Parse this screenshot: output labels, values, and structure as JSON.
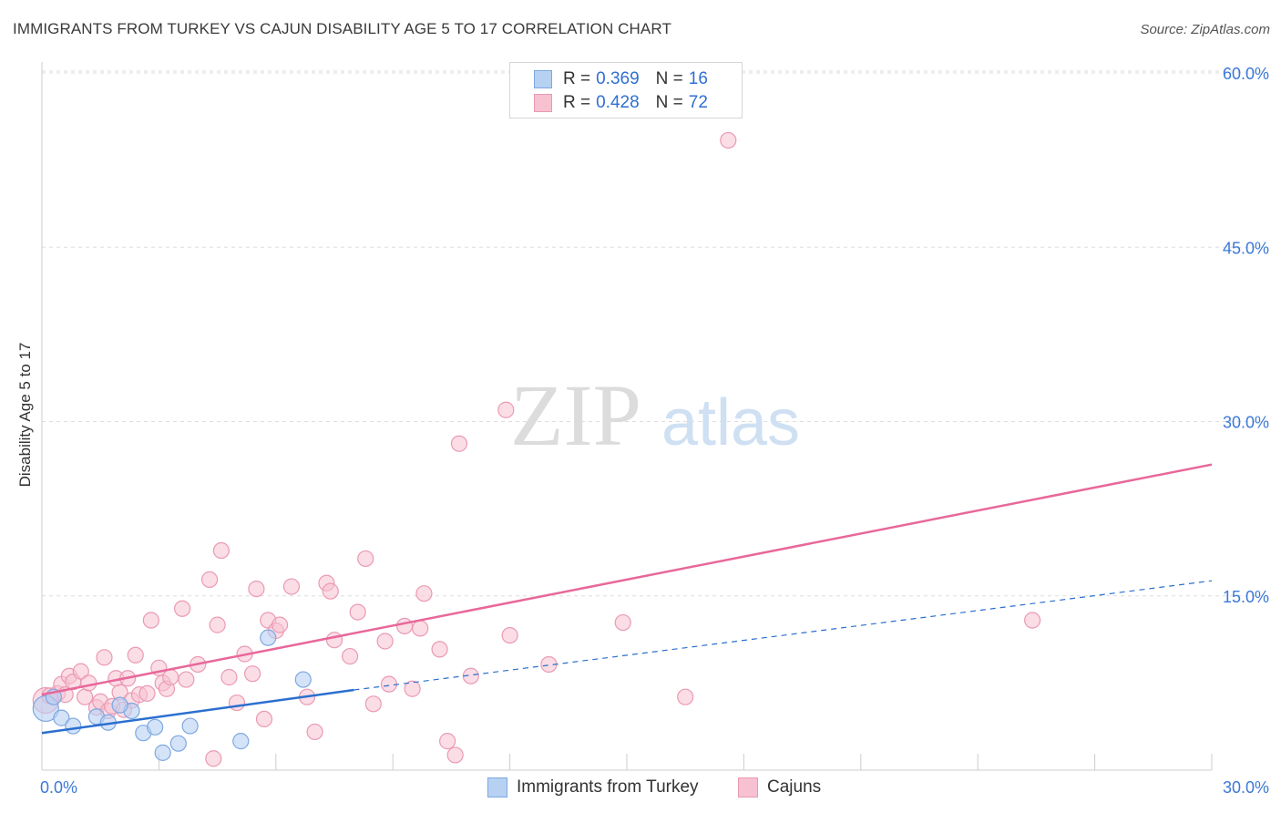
{
  "title": "IMMIGRANTS FROM TURKEY VS CAJUN DISABILITY AGE 5 TO 17 CORRELATION CHART",
  "source": "Source: ZipAtlas.com",
  "watermark": {
    "zip": "ZIP",
    "atlas": "atlas"
  },
  "legend": {
    "series1": {
      "r_label": "R =",
      "r_value": "0.369",
      "n_label": "N =",
      "n_value": "16"
    },
    "series2": {
      "r_label": "R =",
      "r_value": "0.428",
      "n_label": "N =",
      "n_value": "72"
    }
  },
  "colors": {
    "blue_fill": "#b7d1f3",
    "blue_stroke": "#7ea8e0",
    "blue_line": "#2b6fcf",
    "pink_fill": "#f7c1d1",
    "pink_stroke": "#ea9ab3",
    "pink_line": "#e8679a",
    "tick_text": "#3b78d8",
    "grid": "#dddddd"
  },
  "chart_data": {
    "type": "scatter",
    "title": "IMMIGRANTS FROM TURKEY VS CAJUN DISABILITY AGE 5 TO 17 CORRELATION CHART",
    "xlabel": "",
    "ylabel": "Disability Age 5 to 17",
    "xlim": [
      0,
      30
    ],
    "ylim": [
      0,
      60
    ],
    "x_tick_labels": [
      "0.0%",
      "30.0%"
    ],
    "y_ticks": [
      15,
      30,
      45,
      60
    ],
    "y_tick_labels": [
      "15.0%",
      "30.0%",
      "45.0%",
      "60.0%"
    ],
    "bottom_legend": [
      "Immigrants from Turkey",
      "Cajuns"
    ],
    "series": [
      {
        "name": "Immigrants from Turkey",
        "r": 0.369,
        "n": 16,
        "trend": {
          "x0": 0,
          "y0": 3.2,
          "x1": 8,
          "y1": 6.9,
          "dash_to_x": 30,
          "dash_to_y": 16.3
        },
        "points": [
          {
            "x": 0.1,
            "y": 5.3,
            "big": true
          },
          {
            "x": 0.5,
            "y": 4.5
          },
          {
            "x": 0.8,
            "y": 3.8
          },
          {
            "x": 1.4,
            "y": 4.6
          },
          {
            "x": 1.7,
            "y": 4.1
          },
          {
            "x": 2.3,
            "y": 5.1
          },
          {
            "x": 2.6,
            "y": 3.2
          },
          {
            "x": 2.9,
            "y": 3.7
          },
          {
            "x": 3.1,
            "y": 1.5
          },
          {
            "x": 3.5,
            "y": 2.3
          },
          {
            "x": 3.8,
            "y": 3.8
          },
          {
            "x": 5.1,
            "y": 2.5
          },
          {
            "x": 5.8,
            "y": 11.4
          },
          {
            "x": 6.7,
            "y": 7.8
          },
          {
            "x": 0.3,
            "y": 6.3
          },
          {
            "x": 2.0,
            "y": 5.6
          }
        ]
      },
      {
        "name": "Cajuns",
        "r": 0.428,
        "n": 72,
        "trend": {
          "x0": 0,
          "y0": 6.5,
          "x1": 30,
          "y1": 26.3
        },
        "points": [
          {
            "x": 0.1,
            "y": 6.0,
            "big": true
          },
          {
            "x": 0.2,
            "y": 6.4
          },
          {
            "x": 0.4,
            "y": 6.6
          },
          {
            "x": 0.5,
            "y": 7.4
          },
          {
            "x": 0.6,
            "y": 6.5
          },
          {
            "x": 0.7,
            "y": 8.1
          },
          {
            "x": 0.8,
            "y": 7.6
          },
          {
            "x": 1.0,
            "y": 8.5
          },
          {
            "x": 1.1,
            "y": 6.3
          },
          {
            "x": 1.2,
            "y": 7.5
          },
          {
            "x": 1.4,
            "y": 5.4
          },
          {
            "x": 1.5,
            "y": 5.9
          },
          {
            "x": 1.6,
            "y": 9.7
          },
          {
            "x": 1.7,
            "y": 5.1
          },
          {
            "x": 1.8,
            "y": 5.5
          },
          {
            "x": 1.9,
            "y": 7.9
          },
          {
            "x": 2.0,
            "y": 6.7
          },
          {
            "x": 2.2,
            "y": 7.9
          },
          {
            "x": 2.3,
            "y": 6.0
          },
          {
            "x": 2.4,
            "y": 9.9
          },
          {
            "x": 2.5,
            "y": 6.5
          },
          {
            "x": 2.7,
            "y": 6.6
          },
          {
            "x": 2.8,
            "y": 12.9
          },
          {
            "x": 3.0,
            "y": 8.8
          },
          {
            "x": 3.1,
            "y": 7.5
          },
          {
            "x": 3.2,
            "y": 7.0
          },
          {
            "x": 3.3,
            "y": 8.0
          },
          {
            "x": 3.6,
            "y": 13.9
          },
          {
            "x": 3.7,
            "y": 7.8
          },
          {
            "x": 4.0,
            "y": 9.1
          },
          {
            "x": 4.3,
            "y": 16.4
          },
          {
            "x": 4.4,
            "y": 1.0
          },
          {
            "x": 4.5,
            "y": 12.5
          },
          {
            "x": 4.6,
            "y": 18.9
          },
          {
            "x": 4.8,
            "y": 8.0
          },
          {
            "x": 5.0,
            "y": 5.8
          },
          {
            "x": 5.2,
            "y": 10.0
          },
          {
            "x": 5.4,
            "y": 8.3
          },
          {
            "x": 5.5,
            "y": 15.6
          },
          {
            "x": 5.7,
            "y": 4.4
          },
          {
            "x": 5.8,
            "y": 12.9
          },
          {
            "x": 6.0,
            "y": 12.0
          },
          {
            "x": 6.1,
            "y": 12.5
          },
          {
            "x": 6.4,
            "y": 15.8
          },
          {
            "x": 6.8,
            "y": 6.3
          },
          {
            "x": 7.0,
            "y": 3.3
          },
          {
            "x": 7.3,
            "y": 16.1
          },
          {
            "x": 7.4,
            "y": 15.4
          },
          {
            "x": 7.5,
            "y": 11.2
          },
          {
            "x": 7.9,
            "y": 9.8
          },
          {
            "x": 8.1,
            "y": 13.6
          },
          {
            "x": 8.3,
            "y": 18.2
          },
          {
            "x": 8.5,
            "y": 5.7
          },
          {
            "x": 8.8,
            "y": 11.1
          },
          {
            "x": 8.9,
            "y": 7.4
          },
          {
            "x": 9.3,
            "y": 12.4
          },
          {
            "x": 9.5,
            "y": 7.0
          },
          {
            "x": 9.7,
            "y": 12.2
          },
          {
            "x": 9.8,
            "y": 15.2
          },
          {
            "x": 10.2,
            "y": 10.4
          },
          {
            "x": 10.4,
            "y": 2.5
          },
          {
            "x": 10.6,
            "y": 1.3
          },
          {
            "x": 10.7,
            "y": 28.1
          },
          {
            "x": 11.0,
            "y": 8.1
          },
          {
            "x": 11.9,
            "y": 31.0
          },
          {
            "x": 12.0,
            "y": 11.6
          },
          {
            "x": 13.0,
            "y": 9.1
          },
          {
            "x": 14.9,
            "y": 12.7
          },
          {
            "x": 16.5,
            "y": 6.3
          },
          {
            "x": 17.6,
            "y": 54.2
          },
          {
            "x": 25.4,
            "y": 12.9
          },
          {
            "x": 2.1,
            "y": 5.2
          }
        ]
      }
    ]
  }
}
